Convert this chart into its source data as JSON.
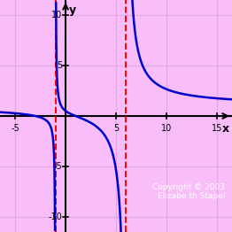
{
  "title": "",
  "xlabel": "x",
  "ylabel": "y",
  "xlim": [
    -6.5,
    16.5
  ],
  "ylim": [
    -11.5,
    11.5
  ],
  "xtick_vals": [
    -5,
    5,
    10,
    15
  ],
  "ytick_vals": [
    -10,
    -5,
    5,
    10
  ],
  "background_color": "#f9bef9",
  "grid_color": "#e0a8e0",
  "curve_color": "#0000cc",
  "asymptote_color": "#ff0000",
  "va1": -1,
  "va2": 6,
  "curve_linewidth": 1.8,
  "asymptote_linewidth": 1.4,
  "copyright_text": "Copyright © 2003\nElizabe th Stapel",
  "copyright_color": "#ffffff",
  "copyright_fontsize": 6.5
}
